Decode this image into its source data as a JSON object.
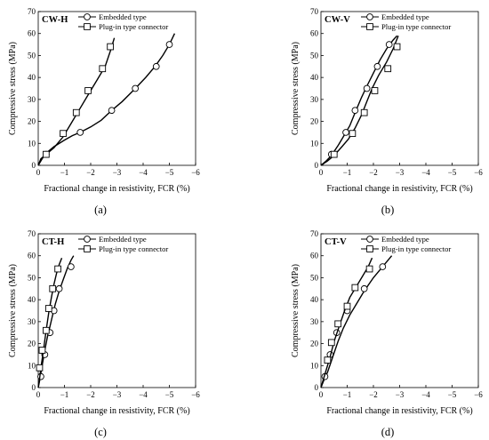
{
  "figure_labels": [
    "(a)",
    "(b)",
    "(c)",
    "(d)"
  ],
  "chart_data": [
    {
      "type": "line",
      "title": "CW-H",
      "xlabel": "Fractional change in resistivity, FCR (%)",
      "ylabel": "Compressive stress (MPa)",
      "xlim": [
        0,
        -6
      ],
      "ylim": [
        0,
        70
      ],
      "xticks": [
        0,
        -1,
        -2,
        -3,
        -4,
        -5,
        -6
      ],
      "yticks": [
        0,
        10,
        20,
        30,
        40,
        50,
        60,
        70
      ],
      "legend": "top-left",
      "series": [
        {
          "name": "Embedded type",
          "marker": "circle",
          "curve": [
            [
              0,
              0
            ],
            [
              -0.15,
              3
            ],
            [
              -0.3,
              5.5
            ],
            [
              -0.6,
              8.5
            ],
            [
              -1,
              11.5
            ],
            [
              -1.3,
              13.5
            ],
            [
              -1.6,
              15
            ],
            [
              -2,
              17.5
            ],
            [
              -2.4,
              20.5
            ],
            [
              -2.8,
              25
            ],
            [
              -3.2,
              29
            ],
            [
              -3.7,
              35
            ],
            [
              -4.1,
              40
            ],
            [
              -4.45,
              45
            ],
            [
              -4.75,
              50
            ],
            [
              -5,
              55
            ],
            [
              -5.2,
              60
            ]
          ],
          "markers": [
            [
              -0.3,
              5
            ],
            [
              -1.6,
              15
            ],
            [
              -2.8,
              25
            ],
            [
              -3.7,
              35
            ],
            [
              -4.5,
              45
            ],
            [
              -5,
              55
            ]
          ]
        },
        {
          "name": "Plug-in type connector",
          "marker": "square",
          "curve": [
            [
              0,
              0
            ],
            [
              -0.1,
              3
            ],
            [
              -0.3,
              5
            ],
            [
              -0.6,
              8
            ],
            [
              -0.95,
              13
            ],
            [
              -1.25,
              19
            ],
            [
              -1.55,
              25
            ],
            [
              -1.9,
              32
            ],
            [
              -2.25,
              39
            ],
            [
              -2.55,
              45
            ],
            [
              -2.75,
              52
            ],
            [
              -2.9,
              58
            ]
          ],
          "markers": [
            [
              -0.3,
              5
            ],
            [
              -0.95,
              14.5
            ],
            [
              -1.45,
              24
            ],
            [
              -1.9,
              34
            ],
            [
              -2.45,
              44
            ],
            [
              -2.75,
              54
            ]
          ]
        }
      ]
    },
    {
      "type": "line",
      "title": "CW-V",
      "xlabel": "Fractional change in resistivity, FCR (%)",
      "ylabel": "Compressive stress (MPa)",
      "xlim": [
        0,
        -6
      ],
      "ylim": [
        0,
        70
      ],
      "xticks": [
        0,
        -1,
        -2,
        -3,
        -4,
        -5,
        -6
      ],
      "yticks": [
        0,
        10,
        20,
        30,
        40,
        50,
        60,
        70
      ],
      "legend": "top-left",
      "series": [
        {
          "name": "Embedded type",
          "marker": "circle",
          "curve": [
            [
              0,
              0
            ],
            [
              -0.2,
              2
            ],
            [
              -0.4,
              4.5
            ],
            [
              -0.65,
              9
            ],
            [
              -0.9,
              14
            ],
            [
              -1.1,
              18
            ],
            [
              -1.3,
              24
            ],
            [
              -1.55,
              31
            ],
            [
              -1.75,
              36
            ],
            [
              -2,
              42
            ],
            [
              -2.25,
              48
            ],
            [
              -2.5,
              53
            ],
            [
              -2.75,
              57
            ],
            [
              -2.9,
              59
            ]
          ],
          "markers": [
            [
              -0.4,
              5
            ],
            [
              -0.95,
              15
            ],
            [
              -1.3,
              25
            ],
            [
              -1.75,
              35
            ],
            [
              -2.15,
              45
            ],
            [
              -2.6,
              55
            ]
          ]
        },
        {
          "name": "Plug-in type connector",
          "marker": "square",
          "curve": [
            [
              0,
              0
            ],
            [
              -0.25,
              2
            ],
            [
              -0.5,
              4.5
            ],
            [
              -0.8,
              8.5
            ],
            [
              -1.05,
              12
            ],
            [
              -1.3,
              17
            ],
            [
              -1.55,
              23
            ],
            [
              -1.75,
              29
            ],
            [
              -1.95,
              35
            ],
            [
              -2.2,
              41
            ],
            [
              -2.5,
              47
            ],
            [
              -2.75,
              53
            ],
            [
              -2.95,
              59
            ]
          ],
          "markers": [
            [
              -0.5,
              5
            ],
            [
              -1.2,
              14.5
            ],
            [
              -1.65,
              24
            ],
            [
              -2.05,
              34
            ],
            [
              -2.55,
              44
            ],
            [
              -2.9,
              54
            ]
          ]
        }
      ]
    },
    {
      "type": "line",
      "title": "CT-H",
      "xlabel": "Fractional change in resistivity, FCR (%)",
      "ylabel": "Compressive stress (MPa)",
      "xlim": [
        0,
        -6
      ],
      "ylim": [
        0,
        70
      ],
      "xticks": [
        0,
        -1,
        -2,
        -3,
        -4,
        -5,
        -6
      ],
      "yticks": [
        0,
        10,
        20,
        30,
        40,
        50,
        60,
        70
      ],
      "legend": "top-left",
      "series": [
        {
          "name": "Embedded type",
          "marker": "circle",
          "curve": [
            [
              0,
              0
            ],
            [
              -0.05,
              3
            ],
            [
              -0.15,
              10
            ],
            [
              -0.25,
              17
            ],
            [
              -0.35,
              23
            ],
            [
              -0.45,
              28
            ],
            [
              -0.55,
              33
            ],
            [
              -0.65,
              38
            ],
            [
              -0.8,
              44
            ],
            [
              -0.95,
              49
            ],
            [
              -1.1,
              54
            ],
            [
              -1.25,
              58
            ],
            [
              -1.35,
              60
            ]
          ],
          "markers": [
            [
              -0.1,
              5
            ],
            [
              -0.25,
              15
            ],
            [
              -0.45,
              25
            ],
            [
              -0.6,
              35
            ],
            [
              -0.8,
              45
            ],
            [
              -1.25,
              55
            ]
          ]
        },
        {
          "name": "Plug-in type connector",
          "marker": "square",
          "curve": [
            [
              0,
              0
            ],
            [
              -0.05,
              4
            ],
            [
              -0.1,
              9
            ],
            [
              -0.2,
              17
            ],
            [
              -0.3,
              26
            ],
            [
              -0.4,
              34
            ],
            [
              -0.5,
              41
            ],
            [
              -0.6,
              47
            ],
            [
              -0.7,
              52
            ],
            [
              -0.8,
              56
            ],
            [
              -0.9,
              59
            ]
          ],
          "markers": [
            [
              -0.05,
              9
            ],
            [
              -0.15,
              17
            ],
            [
              -0.3,
              26
            ],
            [
              -0.4,
              36
            ],
            [
              -0.55,
              45
            ],
            [
              -0.75,
              54
            ]
          ]
        }
      ]
    },
    {
      "type": "line",
      "title": "CT-V",
      "xlabel": "Fractional change in resistivity, FCR (%)",
      "ylabel": "Compressive stress (MPa)",
      "xlim": [
        0,
        -6
      ],
      "ylim": [
        0,
        70
      ],
      "xticks": [
        0,
        -1,
        -2,
        -3,
        -4,
        -5,
        -6
      ],
      "yticks": [
        0,
        10,
        20,
        30,
        40,
        50,
        60,
        70
      ],
      "legend": "top-left",
      "series": [
        {
          "name": "Embedded type",
          "marker": "circle",
          "curve": [
            [
              0,
              0
            ],
            [
              -0.1,
              3
            ],
            [
              -0.25,
              7
            ],
            [
              -0.45,
              14
            ],
            [
              -0.65,
              21
            ],
            [
              -0.85,
              27
            ],
            [
              -1.1,
              33
            ],
            [
              -1.35,
              38
            ],
            [
              -1.65,
              44
            ],
            [
              -2,
              50
            ],
            [
              -2.35,
              55
            ],
            [
              -2.7,
              60
            ]
          ],
          "markers": [
            [
              -0.15,
              5
            ],
            [
              -0.35,
              15
            ],
            [
              -0.6,
              25
            ],
            [
              -1,
              35
            ],
            [
              -1.65,
              45
            ],
            [
              -2.35,
              55
            ]
          ]
        },
        {
          "name": "Plug-in type connector",
          "marker": "square",
          "curve": [
            [
              0,
              0
            ],
            [
              -0.1,
              4
            ],
            [
              -0.2,
              8
            ],
            [
              -0.35,
              14
            ],
            [
              -0.5,
              21
            ],
            [
              -0.7,
              28
            ],
            [
              -0.9,
              35
            ],
            [
              -1.1,
              41
            ],
            [
              -1.35,
              46
            ],
            [
              -1.6,
              51
            ],
            [
              -1.8,
              55
            ],
            [
              -1.95,
              59
            ]
          ],
          "markers": [
            [
              -0.25,
              12.5
            ],
            [
              -0.4,
              20.5
            ],
            [
              -0.65,
              29
            ],
            [
              -1,
              37
            ],
            [
              -1.3,
              45.5
            ],
            [
              -1.85,
              54
            ]
          ]
        }
      ]
    }
  ]
}
